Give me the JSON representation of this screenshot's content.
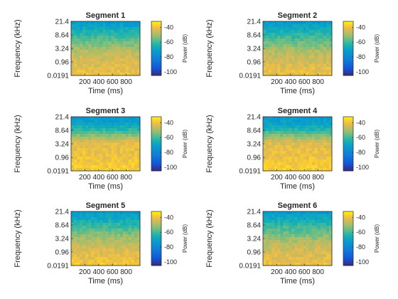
{
  "figure": {
    "background": "#ffffff"
  },
  "chart_data": [
    {
      "type": "heatmap",
      "title": "Segment 1",
      "xlabel": "Time (ms)",
      "ylabel": "Frequency (kHz)",
      "x_ticks": [
        200,
        400,
        600,
        800
      ],
      "xlim": [
        0,
        1000
      ],
      "y_ticks": [
        "0.0191",
        "0.96",
        "3.24",
        "8.64",
        "21.4"
      ],
      "colorbar": {
        "label": "Power (dB)",
        "ticks": [
          -40,
          -60,
          -80,
          -100
        ],
        "range": [
          -105,
          -32
        ]
      },
      "colormap": "parula",
      "power_profile_db_low_to_high_freq": [
        -40,
        -42,
        -44,
        -46,
        -50,
        -56,
        -62,
        -68,
        -73
      ]
    },
    {
      "type": "heatmap",
      "title": "Segment 2",
      "xlabel": "Time (ms)",
      "ylabel": "Frequency (kHz)",
      "x_ticks": [
        200,
        400,
        600,
        800
      ],
      "xlim": [
        0,
        1000
      ],
      "y_ticks": [
        "0.0191",
        "0.96",
        "3.24",
        "8.64",
        "21.4"
      ],
      "colorbar": {
        "label": "Power (dB)",
        "ticks": [
          -40,
          -60,
          -80,
          -100
        ],
        "range": [
          -105,
          -32
        ]
      },
      "colormap": "parula",
      "power_profile_db_low_to_high_freq": [
        -40,
        -42,
        -45,
        -47,
        -51,
        -57,
        -62,
        -68,
        -73
      ]
    },
    {
      "type": "heatmap",
      "title": "Segment 3",
      "xlabel": "Time (ms)",
      "ylabel": "Frequency (kHz)",
      "x_ticks": [
        200,
        400,
        600,
        800
      ],
      "xlim": [
        0,
        1000
      ],
      "y_ticks": [
        "0.0191",
        "0.96",
        "3.24",
        "8.64",
        "21.4"
      ],
      "colorbar": {
        "label": "Power (dB)",
        "ticks": [
          -40,
          -60,
          -80,
          -100
        ],
        "range": [
          -105,
          -32
        ]
      },
      "colormap": "parula",
      "power_profile_db_low_to_high_freq": [
        -38,
        -39,
        -40,
        -41,
        -42,
        -50,
        -62,
        -70,
        -74
      ]
    },
    {
      "type": "heatmap",
      "title": "Segment 4",
      "xlabel": "Time (ms)",
      "ylabel": "Frequency (kHz)",
      "x_ticks": [
        200,
        400,
        600,
        800
      ],
      "xlim": [
        0,
        1000
      ],
      "y_ticks": [
        "0.0191",
        "0.96",
        "3.24",
        "8.64",
        "21.4"
      ],
      "colorbar": {
        "label": "Power (dB)",
        "ticks": [
          -40,
          -60,
          -80,
          -100
        ],
        "range": [
          -105,
          -32
        ]
      },
      "colormap": "parula",
      "power_profile_db_low_to_high_freq": [
        -38,
        -39,
        -40,
        -41,
        -43,
        -51,
        -63,
        -70,
        -74
      ]
    },
    {
      "type": "heatmap",
      "title": "Segment 5",
      "xlabel": "Time (ms)",
      "ylabel": "Frequency (kHz)",
      "x_ticks": [
        200,
        400,
        600,
        800
      ],
      "xlim": [
        0,
        1000
      ],
      "y_ticks": [
        "0.0191",
        "0.96",
        "3.24",
        "8.64",
        "21.4"
      ],
      "colorbar": {
        "label": "Power (dB)",
        "ticks": [
          -40,
          -60,
          -80,
          -100
        ],
        "range": [
          -105,
          -32
        ]
      },
      "colormap": "parula",
      "power_profile_db_low_to_high_freq": [
        -39,
        -41,
        -43,
        -46,
        -50,
        -56,
        -62,
        -68,
        -73
      ]
    },
    {
      "type": "heatmap",
      "title": "Segment 6",
      "xlabel": "Time (ms)",
      "ylabel": "Frequency (kHz)",
      "x_ticks": [
        200,
        400,
        600,
        800
      ],
      "xlim": [
        0,
        1000
      ],
      "y_ticks": [
        "0.0191",
        "0.96",
        "3.24",
        "8.64",
        "21.4"
      ],
      "colorbar": {
        "label": "Power (dB)",
        "ticks": [
          -40,
          -60,
          -80,
          -100
        ],
        "range": [
          -105,
          -32
        ]
      },
      "colormap": "parula",
      "power_profile_db_low_to_high_freq": [
        -40,
        -42,
        -44,
        -47,
        -51,
        -57,
        -62,
        -68,
        -73
      ]
    }
  ]
}
